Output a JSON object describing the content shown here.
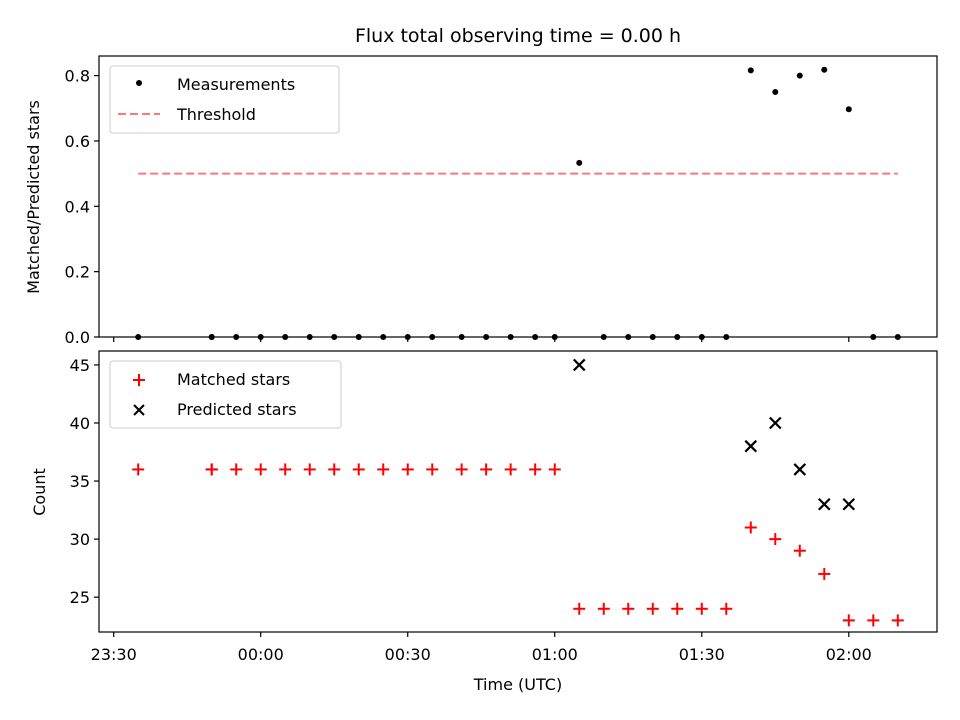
{
  "chart_data": [
    {
      "type": "scatter",
      "title": "Flux total observing time = 0.00 h",
      "xlabel": "",
      "ylabel": "Matched/Predicted stars",
      "ylim": [
        0,
        0.86
      ],
      "yticks": [
        0.0,
        0.2,
        0.4,
        0.6,
        0.8
      ],
      "ytick_labels": [
        "0.0",
        "0.2",
        "0.4",
        "0.6",
        "0.8"
      ],
      "xlim_minutes": [
        -33,
        138
      ],
      "xticks_minutes": [
        -30,
        0,
        30,
        60,
        90,
        120
      ],
      "xtick_labels": [
        "",
        "",
        "",
        "",
        "",
        ""
      ],
      "legend_position": "upper-left",
      "grid": false,
      "series": [
        {
          "name": "Measurements",
          "marker": "dot",
          "color": "#000000",
          "x": [
            "23:35",
            "23:50",
            "23:50",
            "23:55",
            "00:00",
            "00:05",
            "00:10",
            "00:15",
            "00:20",
            "00:25",
            "00:30",
            "00:35",
            "00:41",
            "00:46",
            "00:51",
            "00:56",
            "01:00",
            "01:05",
            "01:10",
            "01:15",
            "01:20",
            "01:25",
            "01:30",
            "01:35",
            "01:40",
            "01:45",
            "01:50",
            "01:55",
            "02:00",
            "02:05",
            "02:10"
          ],
          "values": [
            0,
            0,
            0,
            0,
            0,
            0,
            0,
            0,
            0,
            0,
            0,
            0,
            0,
            0,
            0,
            0,
            0,
            0.533,
            0,
            0,
            0,
            0,
            0,
            0,
            0.816,
            0.75,
            0.8,
            0.818,
            0.697,
            0,
            0
          ]
        },
        {
          "name": "Threshold",
          "style": "dashed",
          "color": "#ff7777",
          "x": [
            "23:35",
            "02:10"
          ],
          "values": [
            0.5,
            0.5
          ]
        }
      ]
    },
    {
      "type": "scatter",
      "title": "",
      "xlabel": "Time (UTC)",
      "ylabel": "Count",
      "ylim": [
        22,
        46.2
      ],
      "yticks": [
        25,
        30,
        35,
        40,
        45
      ],
      "ytick_labels": [
        "25",
        "30",
        "35",
        "40",
        "45"
      ],
      "xlim_minutes": [
        -33,
        138
      ],
      "xticks_minutes": [
        -30,
        0,
        30,
        60,
        90,
        120
      ],
      "xtick_labels": [
        "23:30",
        "00:00",
        "00:30",
        "01:00",
        "01:30",
        "02:00"
      ],
      "legend_position": "upper-left",
      "grid": false,
      "series": [
        {
          "name": "Matched stars",
          "marker": "plus",
          "color": "#ff0000",
          "x": [
            "23:35",
            "23:50",
            "23:50",
            "23:55",
            "00:00",
            "00:05",
            "00:10",
            "00:15",
            "00:20",
            "00:25",
            "00:30",
            "00:35",
            "00:41",
            "00:46",
            "00:51",
            "00:56",
            "01:00",
            "01:05",
            "01:10",
            "01:15",
            "01:20",
            "01:25",
            "01:30",
            "01:35",
            "01:40",
            "01:45",
            "01:50",
            "01:55",
            "02:00",
            "02:05",
            "02:10"
          ],
          "values": [
            36,
            36,
            36,
            36,
            36,
            36,
            36,
            36,
            36,
            36,
            36,
            36,
            36,
            36,
            36,
            36,
            36,
            24,
            24,
            24,
            24,
            24,
            24,
            24,
            31,
            30,
            29,
            27,
            23,
            23,
            23
          ]
        },
        {
          "name": "Predicted stars",
          "marker": "x",
          "color": "#000000",
          "x": [
            "01:05",
            "01:40",
            "01:45",
            "01:50",
            "01:55",
            "02:00"
          ],
          "values": [
            45,
            38,
            40,
            36,
            33,
            33
          ]
        }
      ]
    }
  ]
}
